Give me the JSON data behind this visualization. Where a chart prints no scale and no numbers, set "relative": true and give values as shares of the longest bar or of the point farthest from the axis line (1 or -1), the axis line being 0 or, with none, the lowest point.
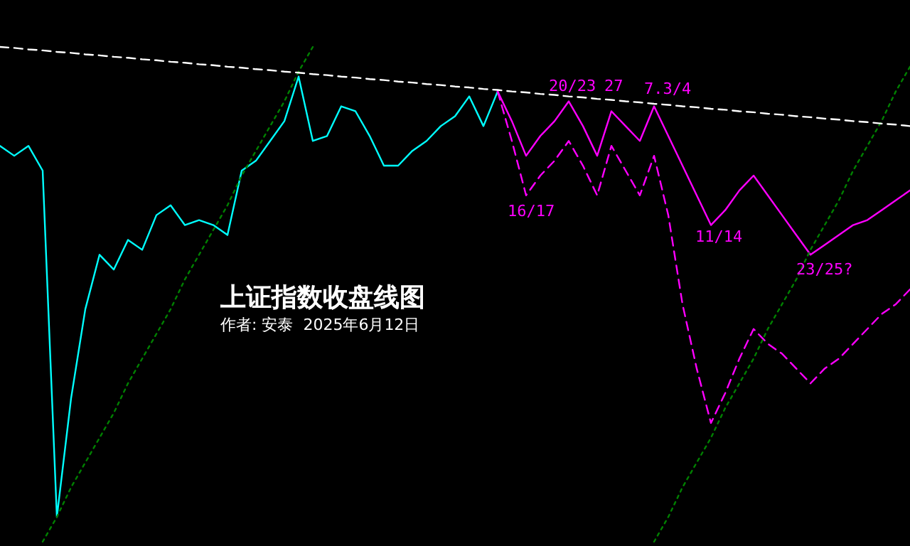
{
  "chart_data": {
    "type": "line",
    "relative": true,
    "title": "上证指数收盘线图",
    "subtitle": "作者: 安泰  2025年6月12日",
    "categories": [
      null,
      null,
      null,
      null,
      null,
      null,
      null,
      null,
      null,
      null,
      null,
      null,
      null,
      null,
      null,
      null,
      null,
      null,
      null,
      null,
      null,
      null,
      null,
      null,
      null,
      null,
      null,
      null,
      null,
      null,
      null,
      null,
      null,
      null,
      null,
      null,
      null,
      null,
      null,
      null,
      null,
      null,
      null,
      null,
      null,
      null,
      null,
      null,
      null,
      null,
      null,
      null,
      null,
      null,
      null,
      null,
      null,
      null,
      null,
      null,
      null,
      null,
      null,
      null,
      null
    ],
    "series": [
      {
        "color": "#00ffff",
        "line_style": "solid",
        "values": [
          0.8,
          0.78,
          0.8,
          0.75,
          0.05,
          0.29,
          0.47,
          0.58,
          0.55,
          0.61,
          0.59,
          0.66,
          0.68,
          0.64,
          0.65,
          0.64,
          0.62,
          0.75,
          0.77,
          0.81,
          0.85,
          0.94,
          0.81,
          0.82,
          0.88,
          0.87,
          0.82,
          0.76,
          0.76,
          0.79,
          0.81,
          0.84,
          0.86,
          0.9,
          0.84,
          0.91,
          null,
          null,
          null,
          null,
          null,
          null,
          null,
          null,
          null,
          null,
          null,
          null,
          null,
          null,
          null,
          null,
          null,
          null,
          null,
          null,
          null,
          null,
          null,
          null,
          null,
          null,
          null,
          null,
          null
        ]
      },
      {
        "color": "#ff00ff",
        "line_style": "solid",
        "values": [
          null,
          null,
          null,
          null,
          null,
          null,
          null,
          null,
          null,
          null,
          null,
          null,
          null,
          null,
          null,
          null,
          null,
          null,
          null,
          null,
          null,
          null,
          null,
          null,
          null,
          null,
          null,
          null,
          null,
          null,
          null,
          null,
          null,
          null,
          null,
          0.91,
          0.85,
          0.78,
          0.82,
          0.85,
          0.89,
          0.84,
          0.78,
          0.87,
          0.84,
          0.81,
          0.88,
          0.82,
          0.76,
          0.7,
          0.64,
          0.67,
          0.71,
          0.74,
          0.7,
          0.66,
          0.62,
          0.58,
          0.6,
          0.62,
          0.64,
          0.65,
          0.67,
          0.69,
          0.71
        ]
      },
      {
        "color": "#ff00ff",
        "line_style": "dashed",
        "values": [
          null,
          null,
          null,
          null,
          null,
          null,
          null,
          null,
          null,
          null,
          null,
          null,
          null,
          null,
          null,
          null,
          null,
          null,
          null,
          null,
          null,
          null,
          null,
          null,
          null,
          null,
          null,
          null,
          null,
          null,
          null,
          null,
          null,
          null,
          null,
          0.91,
          0.81,
          0.7,
          0.74,
          0.77,
          0.81,
          0.76,
          0.7,
          0.8,
          0.75,
          0.7,
          0.78,
          0.66,
          0.48,
          0.35,
          0.24,
          0.3,
          0.37,
          0.43,
          0.4,
          0.38,
          0.35,
          0.32,
          0.35,
          0.37,
          0.4,
          0.43,
          0.46,
          0.48,
          0.51
        ]
      },
      {
        "color": "#008000",
        "line_style": "dotted",
        "values": [
          null,
          null,
          null,
          0.0,
          0.05,
          0.11,
          0.16,
          0.21,
          0.26,
          0.32,
          0.37,
          0.42,
          0.47,
          0.53,
          0.58,
          0.63,
          0.68,
          0.74,
          0.79,
          0.84,
          0.89,
          0.95,
          1.0,
          null,
          null,
          null,
          null,
          null,
          null,
          null,
          null,
          null,
          null,
          null,
          null,
          null,
          null,
          null,
          null,
          null,
          null,
          null,
          null,
          null,
          null,
          null,
          null,
          null,
          null,
          null,
          null,
          null,
          null,
          null,
          null,
          null,
          null,
          null,
          null,
          null,
          null,
          null,
          null,
          null,
          null
        ]
      },
      {
        "color": "#008000",
        "line_style": "dotted",
        "values": [
          null,
          null,
          null,
          null,
          null,
          null,
          null,
          null,
          null,
          null,
          null,
          null,
          null,
          null,
          null,
          null,
          null,
          null,
          null,
          null,
          null,
          null,
          null,
          null,
          null,
          null,
          null,
          null,
          null,
          null,
          null,
          null,
          null,
          null,
          null,
          null,
          null,
          null,
          null,
          null,
          null,
          null,
          null,
          null,
          null,
          null,
          0.0,
          0.05,
          0.11,
          0.16,
          0.21,
          0.27,
          0.32,
          0.37,
          0.43,
          0.48,
          0.53,
          0.59,
          0.64,
          0.69,
          0.75,
          0.8,
          0.85,
          0.91,
          0.96
        ]
      },
      {
        "color": "#ffffff",
        "line_style": "dashed",
        "values": [
          1.0,
          0.998,
          0.995,
          0.993,
          0.99,
          0.988,
          0.985,
          0.983,
          0.98,
          0.978,
          0.975,
          0.973,
          0.97,
          0.968,
          0.965,
          0.963,
          0.96,
          0.958,
          0.955,
          0.953,
          0.95,
          0.948,
          0.945,
          0.943,
          0.94,
          0.938,
          0.935,
          0.933,
          0.93,
          0.928,
          0.925,
          0.923,
          0.92,
          0.918,
          0.915,
          0.913,
          0.91,
          0.908,
          0.905,
          0.903,
          0.9,
          0.898,
          0.895,
          0.893,
          0.89,
          0.888,
          0.885,
          0.883,
          0.88,
          0.878,
          0.875,
          0.873,
          0.87,
          0.868,
          0.865,
          0.863,
          0.86,
          0.858,
          0.855,
          0.853,
          0.85,
          0.848,
          0.845,
          0.843,
          0.84
        ]
      }
    ],
    "annotations": [
      "20/23",
      "27",
      "7.3/4",
      "16/17",
      "11/14",
      "23/25?"
    ]
  }
}
